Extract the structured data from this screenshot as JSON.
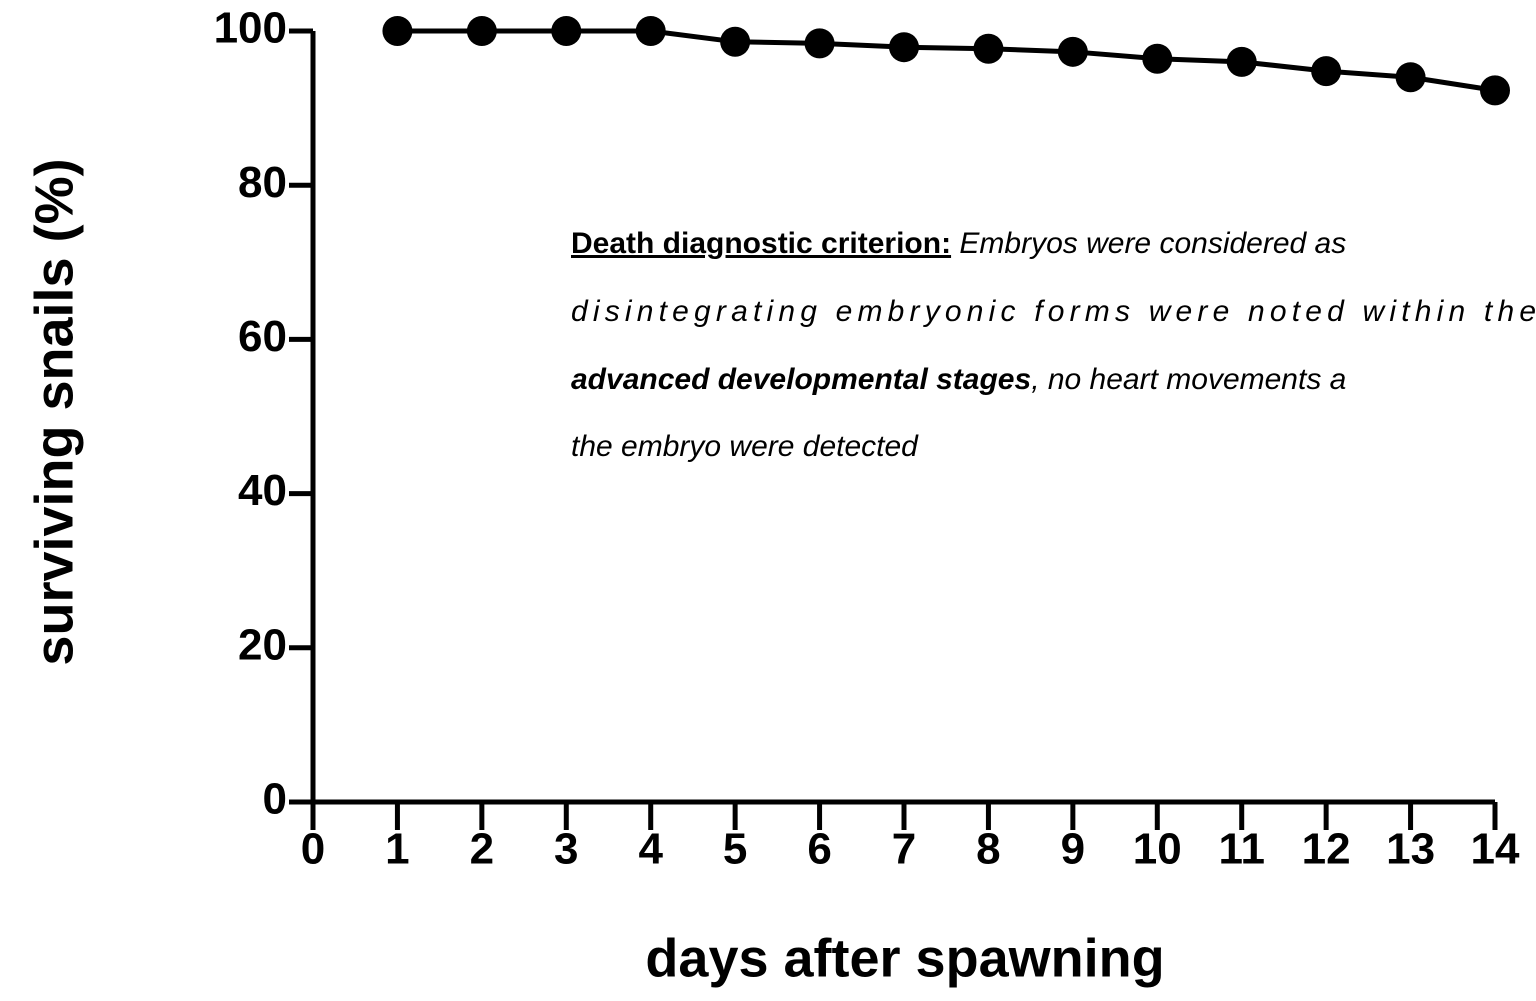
{
  "chart_data": {
    "type": "line",
    "x_label": "days after spawning",
    "y_label": "surviving snails (%)",
    "x": [
      1,
      2,
      3,
      4,
      5,
      6,
      7,
      8,
      9,
      10,
      11,
      12,
      13,
      14
    ],
    "series": [
      {
        "color": "#000000",
        "values": [
          100,
          100,
          100,
          100,
          98.6,
          98.4,
          97.9,
          97.7,
          97.3,
          96.4,
          96.0,
          94.8,
          94.0,
          92.3
        ]
      }
    ],
    "xlim": [
      0,
      14
    ],
    "xticks": [
      0,
      1,
      2,
      3,
      4,
      5,
      6,
      7,
      8,
      9,
      10,
      11,
      12,
      13,
      14
    ],
    "ylim": [
      0,
      100
    ],
    "yticks": [
      0,
      20,
      40,
      60,
      80,
      100
    ],
    "grid": false,
    "annotation": {
      "lines": [
        [
          {
            "text": "Death diagnostic criterion:",
            "style": "bold-underline"
          },
          {
            "text": " Embryos were considered as",
            "style": "italic"
          }
        ],
        [
          {
            "text": "disintegrating embryonic forms were noted within the",
            "style": "italic"
          }
        ],
        [
          {
            "text": "advanced developmental stages",
            "style": "bold-italic"
          },
          {
            "text": ", no heart movements a",
            "style": "italic"
          }
        ],
        [
          {
            "text": "the embryo were detected",
            "style": "italic"
          }
        ]
      ]
    }
  }
}
